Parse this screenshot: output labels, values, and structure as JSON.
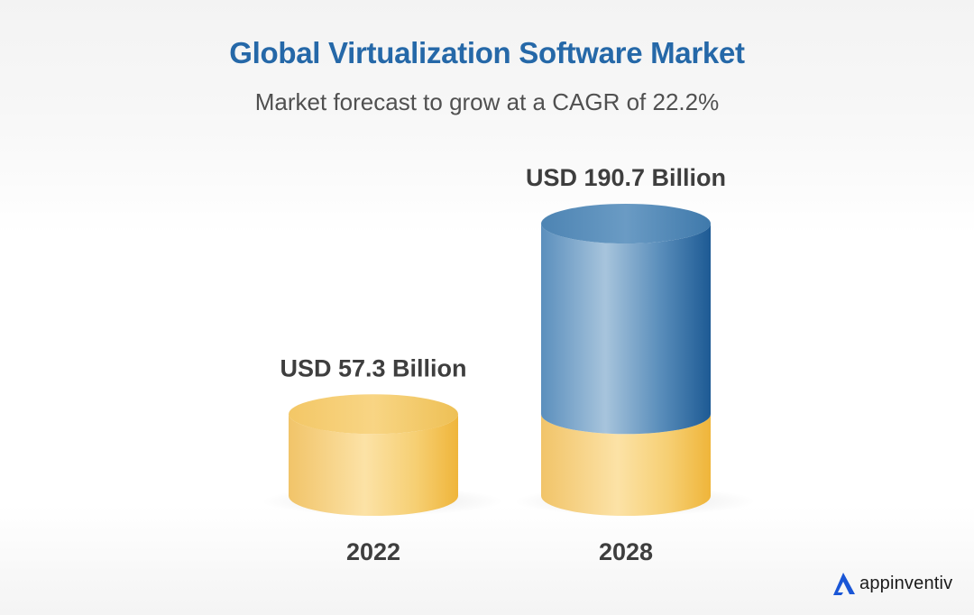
{
  "chart_data": {
    "type": "bar",
    "title": "Global Virtualization Software Market",
    "subtitle": "Market forecast to grow at a CAGR of 22.2%",
    "categories": [
      "2022",
      "2028"
    ],
    "values": [
      57.3,
      190.7
    ],
    "value_labels": [
      "USD 57.3 Billion",
      "USD 190.7 Billion"
    ],
    "unit": "USD Billion",
    "xlabel": "",
    "ylabel": "",
    "grid": false,
    "legend": "none",
    "colors": {
      "base_bar": "#f4c04e",
      "growth_segment": "#4f89b8",
      "title": "#2568a8"
    }
  },
  "brand": {
    "name": "appinventiv",
    "icon": "appinventiv-logo-icon",
    "color": "#1a56d6"
  }
}
